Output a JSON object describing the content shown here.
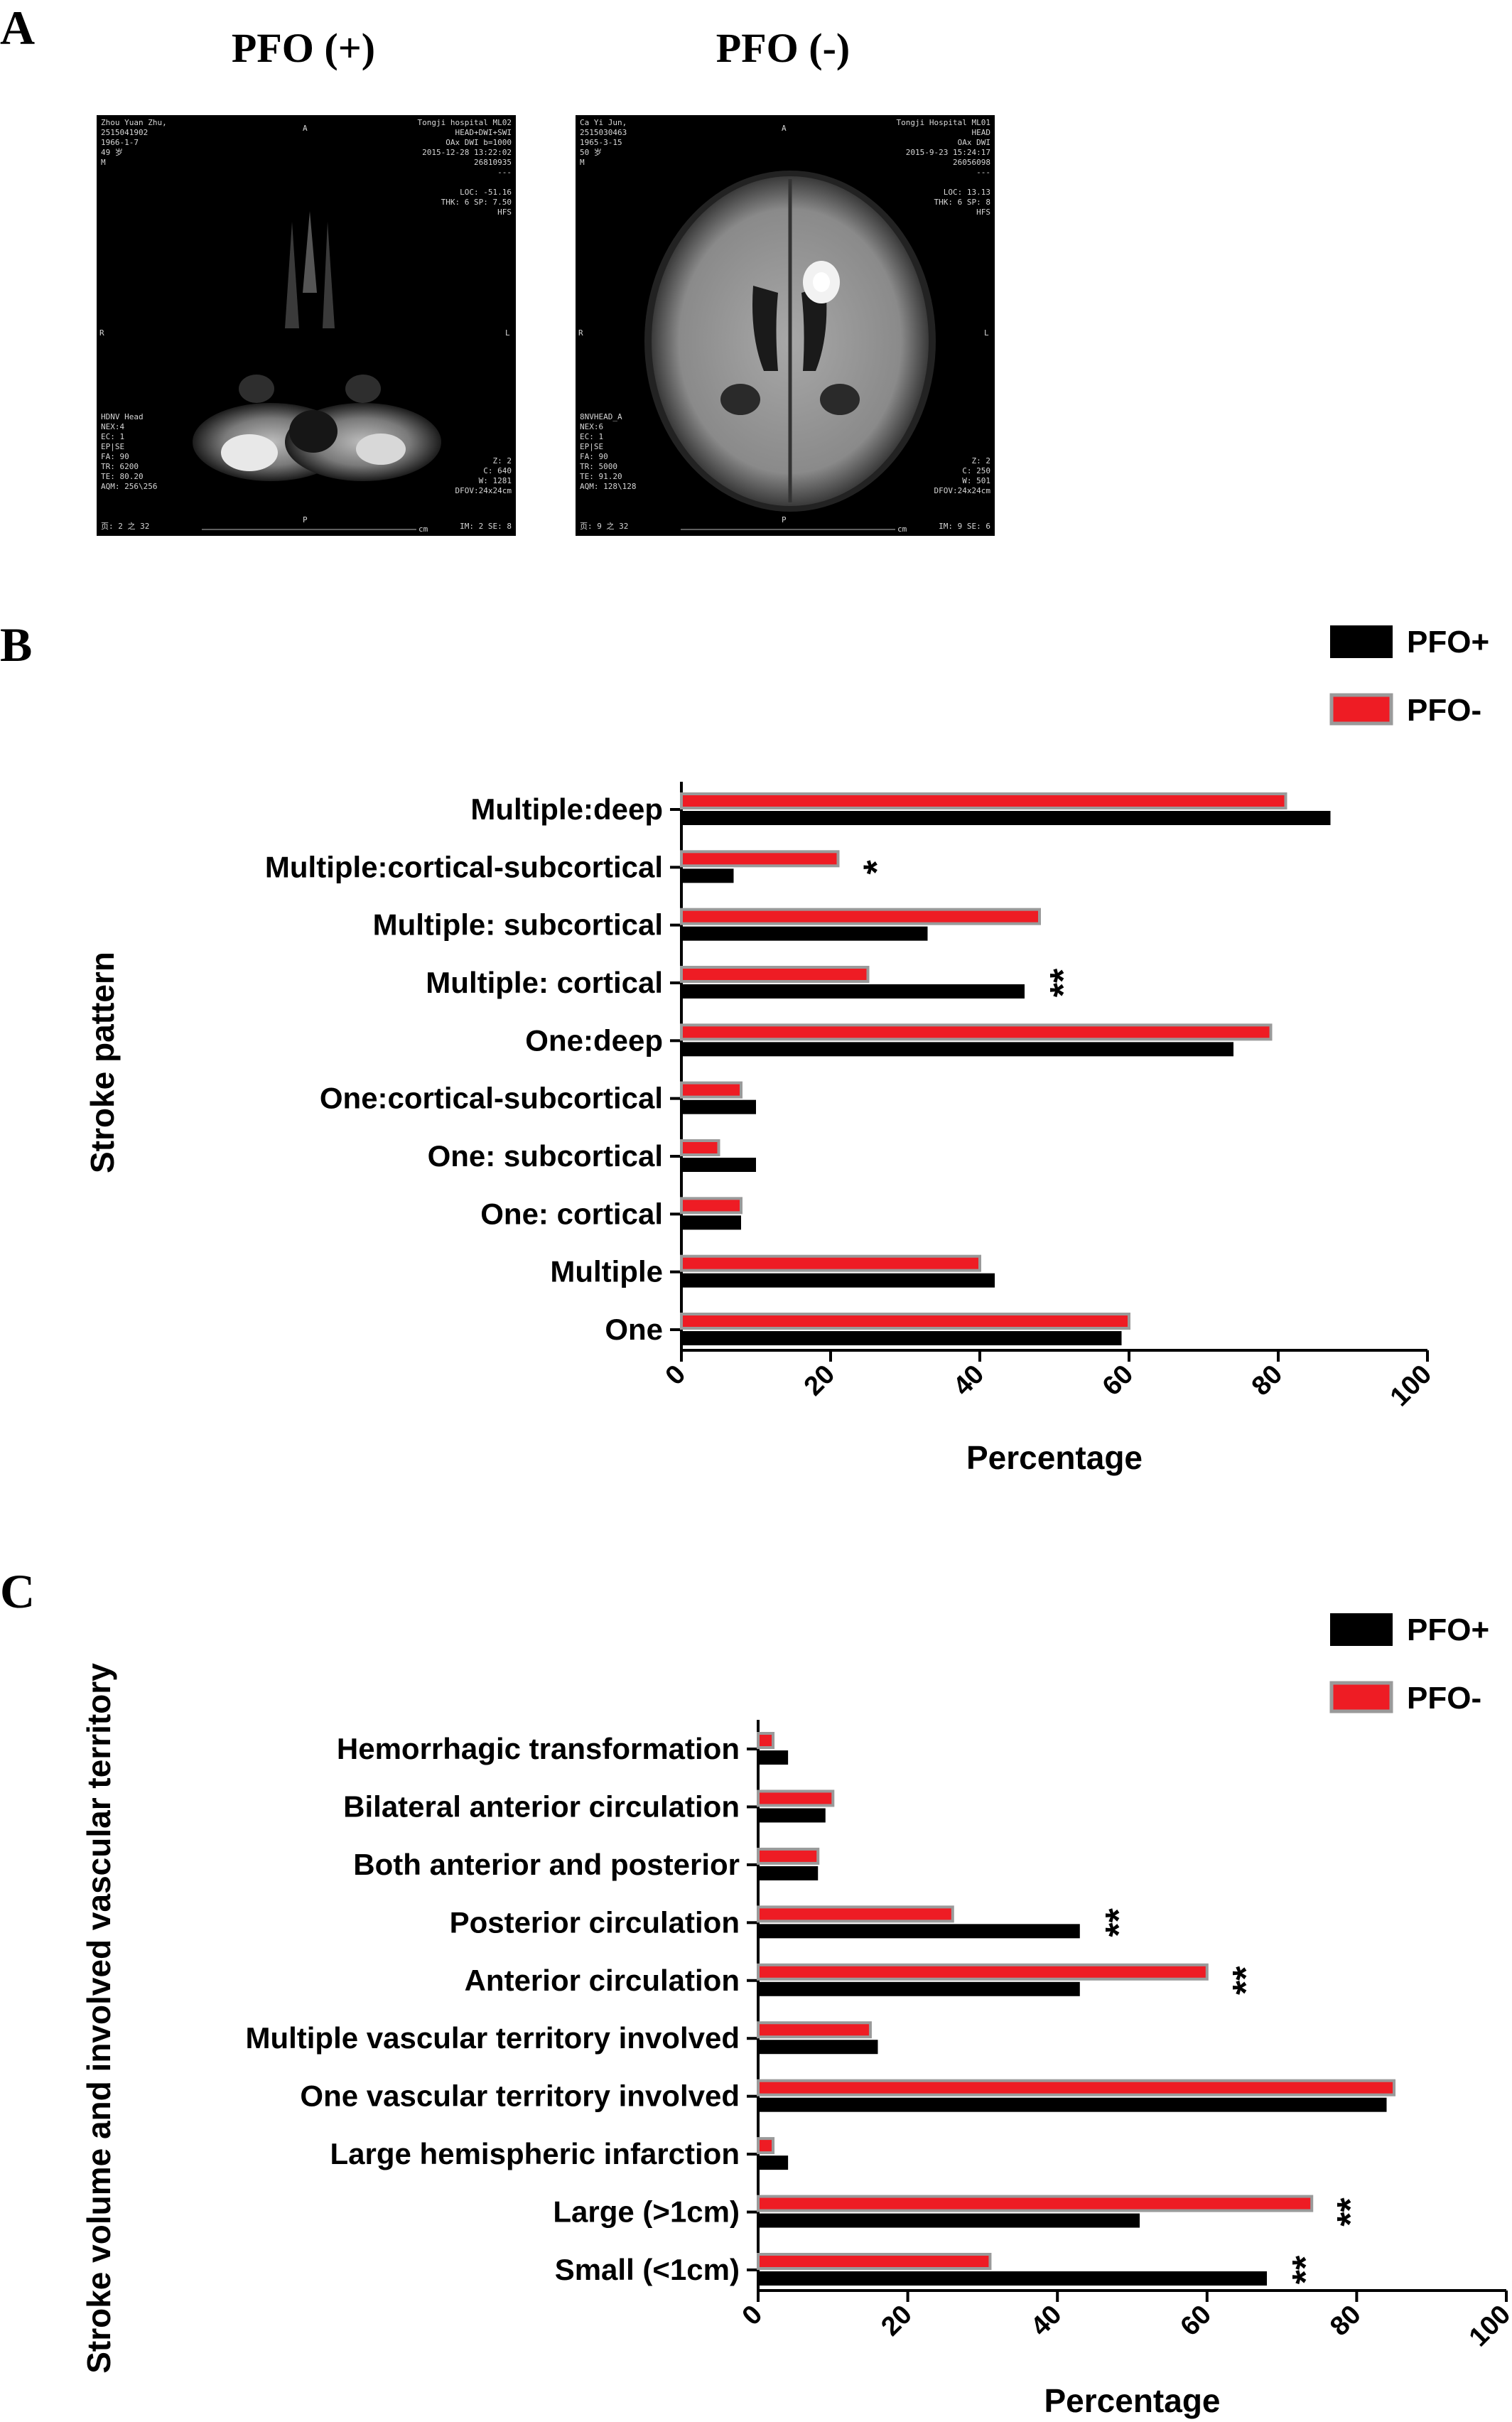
{
  "panels": {
    "a": {
      "letter": "A",
      "images": [
        {
          "title": "PFO (+)",
          "overlay_top_left": "Zhou Yuan Zhu,\n2515041902\n1966-1-7\n49 岁\nM",
          "overlay_top_right": "Tongji hospital ML02\nHEAD+DWI+SWI\nOAx DWI b=1000\n2015-12-28 13:22:02\n26810935\n---\n\nLOC: -51.16\nTHK: 6 SP: 7.50\nHFS",
          "overlay_bottom_left": "HDNV Head\nNEX:4\nEC: 1\nEP|SE\nFA: 90\nTR: 6200\nTE: 80.20\nAQM: 256\\256",
          "overlay_bottom_right": "Z: 2\nC: 640\nW: 1281\nDFOV:24x24cm",
          "overlay_bottom_line_left": "页: 2 之 32",
          "overlay_bottom_line_right": "IM: 2 SE: 8",
          "orient_top": "A",
          "orient_left": "R",
          "orient_right": "L",
          "orient_bottom": "P",
          "scale_unit": "cm"
        },
        {
          "title": "PFO (-)",
          "overlay_top_left": "Ca Yi Jun,\n2515030463\n1965-3-15\n50 岁\nM",
          "overlay_top_right": "Tongji Hospital ML01\nHEAD\nOAx DWI\n2015-9-23 15:24:17\n26056098\n---\n\nLOC: 13.13\nTHK: 6 SP: 8\nHFS",
          "overlay_bottom_left": "8NVHEAD_A\nNEX:6\nEC: 1\nEP|SE\nFA: 90\nTR: 5000\nTE: 91.20\nAQM: 128\\128",
          "overlay_bottom_right": "Z: 2\nC: 250\nW: 501\nDFOV:24x24cm",
          "overlay_bottom_line_left": "页: 9 之 32",
          "overlay_bottom_line_right": "IM: 9 SE: 6",
          "orient_top": "A",
          "orient_left": "R",
          "orient_right": "L",
          "orient_bottom": "P",
          "scale_unit": "cm"
        }
      ]
    },
    "b": {
      "letter": "B"
    },
    "c": {
      "letter": "C"
    }
  },
  "colors": {
    "pfo_plus": "#000000",
    "pfo_minus": "#ee1c24",
    "pfo_minus_border": "#9a9a9a"
  },
  "chart_data": [
    {
      "type": "bar",
      "orientation": "horizontal",
      "xlabel": "Percentage",
      "ylabel": "Stroke pattern",
      "xlim": [
        0,
        100
      ],
      "xticks": [
        "0",
        "20",
        "40",
        "60",
        "80",
        "100"
      ],
      "legend_position": "top-right",
      "categories": [
        "Multiple:deep",
        "Multiple:cortical-subcortical",
        "Multiple: subcortical",
        "Multiple: cortical",
        "One:deep",
        "One:cortical-subcortical",
        "One: subcortical",
        "One: cortical",
        "Multiple",
        "One"
      ],
      "series": [
        {
          "name": "PFO+",
          "values": [
            87,
            7,
            33,
            46,
            74,
            10,
            10,
            8,
            42,
            59
          ]
        },
        {
          "name": "PFO-",
          "values": [
            81,
            21,
            48,
            25,
            79,
            8,
            5,
            8,
            40,
            60
          ]
        }
      ],
      "annotations": [
        "",
        "*",
        "",
        "**",
        "",
        "",
        "",
        "",
        "",
        ""
      ]
    },
    {
      "type": "bar",
      "orientation": "horizontal",
      "xlabel": "Percentage",
      "ylabel": "Stroke volume and involved vascular territory",
      "xlim": [
        0,
        100
      ],
      "xticks": [
        "0",
        "20",
        "40",
        "60",
        "80",
        "100"
      ],
      "legend_position": "top-right",
      "categories": [
        "Hemorrhagic transformation",
        "Bilateral anterior circulation",
        "Both anterior and posterior",
        "Posterior circulation",
        "Anterior circulation",
        "Multiple vascular territory involved",
        "One vascular territory involved",
        "Large hemispheric infarction",
        "Large (>1cm)",
        "Small (<1cm)"
      ],
      "series": [
        {
          "name": "PFO+",
          "values": [
            4,
            9,
            8,
            43,
            43,
            16,
            84,
            4,
            51,
            68
          ]
        },
        {
          "name": "PFO-",
          "values": [
            2,
            10,
            8,
            26,
            60,
            15,
            85,
            2,
            74,
            31
          ]
        }
      ],
      "annotations": [
        "",
        "",
        "",
        "**",
        "**",
        "",
        "",
        "",
        "**",
        "**"
      ]
    }
  ]
}
